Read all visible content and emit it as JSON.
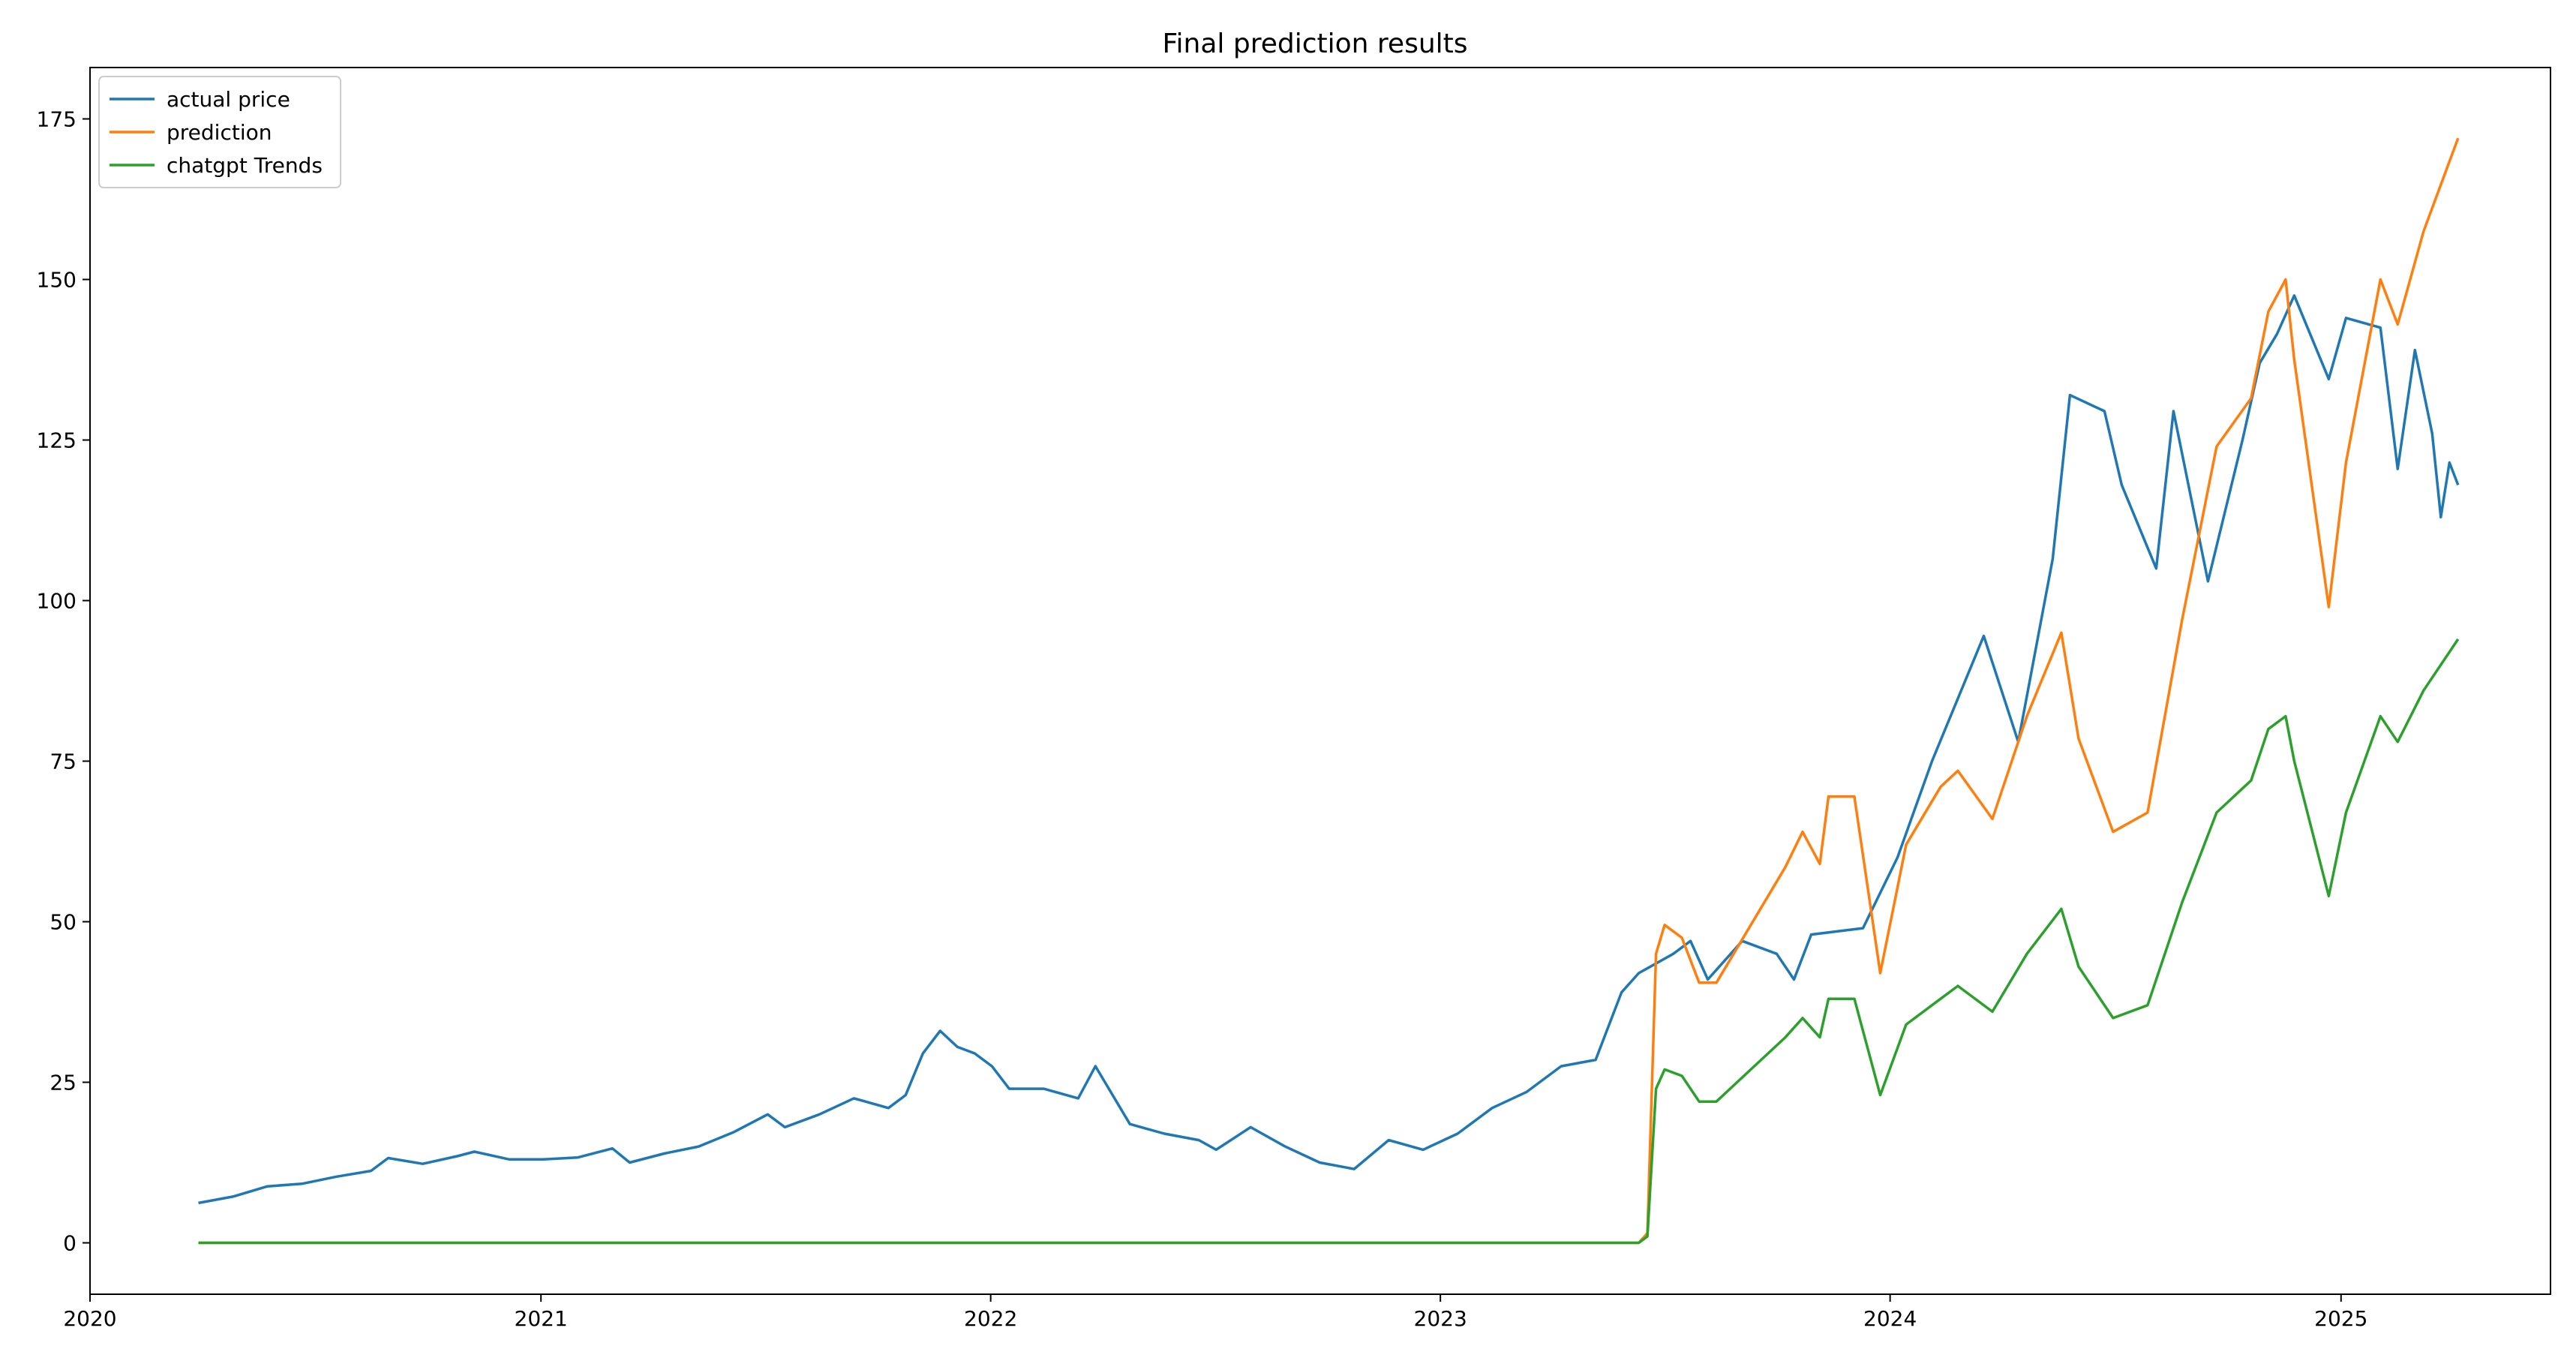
{
  "chart_data": {
    "type": "line",
    "title": "Final prediction results",
    "xlabel": "",
    "ylabel": "",
    "xlim": [
      "2020-01-01",
      "2025-06-20"
    ],
    "ylim": [
      -8,
      183
    ],
    "grid": false,
    "legend_position": "top-left",
    "x_tick_labels": [
      "2020",
      "2021",
      "2022",
      "2023",
      "2024",
      "2025"
    ],
    "y_tick_labels": [
      "0",
      "25",
      "50",
      "75",
      "100",
      "125",
      "150",
      "175"
    ],
    "series": [
      {
        "name": "actual price",
        "color": "#1f77b4",
        "points": [
          [
            "2020-03-29",
            6.2
          ],
          [
            "2020-04-26",
            7.2
          ],
          [
            "2020-05-24",
            8.8
          ],
          [
            "2020-06-21",
            9.2
          ],
          [
            "2020-07-19",
            10.3
          ],
          [
            "2020-08-16",
            11.2
          ],
          [
            "2020-08-30",
            13.2
          ],
          [
            "2020-09-27",
            12.3
          ],
          [
            "2020-10-25",
            13.5
          ],
          [
            "2020-11-08",
            14.2
          ],
          [
            "2020-12-06",
            13.0
          ],
          [
            "2021-01-03",
            13.0
          ],
          [
            "2021-01-31",
            13.3
          ],
          [
            "2021-02-28",
            14.7
          ],
          [
            "2021-03-14",
            12.5
          ],
          [
            "2021-04-11",
            13.9
          ],
          [
            "2021-05-09",
            15.0
          ],
          [
            "2021-06-06",
            17.2
          ],
          [
            "2021-07-04",
            20.0
          ],
          [
            "2021-07-18",
            18.0
          ],
          [
            "2021-08-15",
            20.0
          ],
          [
            "2021-09-12",
            22.5
          ],
          [
            "2021-10-10",
            21.0
          ],
          [
            "2021-10-24",
            23.0
          ],
          [
            "2021-11-07",
            29.5
          ],
          [
            "2021-11-21",
            33.0
          ],
          [
            "2021-12-05",
            30.5
          ],
          [
            "2021-12-19",
            29.5
          ],
          [
            "2022-01-02",
            27.5
          ],
          [
            "2022-01-16",
            24.0
          ],
          [
            "2022-02-13",
            24.0
          ],
          [
            "2022-03-13",
            22.5
          ],
          [
            "2022-03-27",
            27.5
          ],
          [
            "2022-04-24",
            18.5
          ],
          [
            "2022-05-22",
            17.0
          ],
          [
            "2022-06-19",
            16.0
          ],
          [
            "2022-07-03",
            14.5
          ],
          [
            "2022-07-31",
            18.0
          ],
          [
            "2022-08-28",
            15.0
          ],
          [
            "2022-09-25",
            12.5
          ],
          [
            "2022-10-23",
            11.5
          ],
          [
            "2022-11-20",
            16.0
          ],
          [
            "2022-12-18",
            14.5
          ],
          [
            "2023-01-15",
            17.0
          ],
          [
            "2023-02-12",
            21.0
          ],
          [
            "2023-03-12",
            23.5
          ],
          [
            "2023-04-09",
            27.5
          ],
          [
            "2023-05-07",
            28.5
          ],
          [
            "2023-05-28",
            39.0
          ],
          [
            "2023-06-11",
            42.0
          ],
          [
            "2023-07-09",
            45.0
          ],
          [
            "2023-07-23",
            47.0
          ],
          [
            "2023-08-06",
            41.0
          ],
          [
            "2023-09-03",
            47.0
          ],
          [
            "2023-10-01",
            45.0
          ],
          [
            "2023-10-15",
            41.0
          ],
          [
            "2023-10-29",
            48.0
          ],
          [
            "2023-12-10",
            49.0
          ],
          [
            "2024-01-07",
            60.0
          ],
          [
            "2024-02-04",
            75.0
          ],
          [
            "2024-03-03",
            88.0
          ],
          [
            "2024-03-17",
            94.5
          ],
          [
            "2024-04-14",
            78.0
          ],
          [
            "2024-05-12",
            106.5
          ],
          [
            "2024-05-26",
            132.0
          ],
          [
            "2024-06-23",
            129.5
          ],
          [
            "2024-07-07",
            118.0
          ],
          [
            "2024-08-04",
            105.0
          ],
          [
            "2024-08-18",
            129.5
          ],
          [
            "2024-09-15",
            103.0
          ],
          [
            "2024-10-13",
            125.0
          ],
          [
            "2024-10-27",
            137.0
          ],
          [
            "2024-11-10",
            141.5
          ],
          [
            "2024-11-24",
            147.5
          ],
          [
            "2024-12-22",
            134.5
          ],
          [
            "2025-01-05",
            144.0
          ],
          [
            "2025-02-02",
            142.5
          ],
          [
            "2025-02-16",
            120.5
          ],
          [
            "2025-03-02",
            139.0
          ],
          [
            "2025-03-16",
            126.0
          ],
          [
            "2025-03-23",
            113.0
          ],
          [
            "2025-03-30",
            121.5
          ],
          [
            "2025-04-06",
            118.0
          ]
        ]
      },
      {
        "name": "prediction",
        "color": "#ff7f0e",
        "points": [
          [
            "2020-03-29",
            0.0
          ],
          [
            "2023-06-11",
            0.0
          ],
          [
            "2023-06-18",
            1.5
          ],
          [
            "2023-06-25",
            45.0
          ],
          [
            "2023-07-02",
            49.5
          ],
          [
            "2023-07-16",
            47.5
          ],
          [
            "2023-07-30",
            40.5
          ],
          [
            "2023-08-13",
            40.5
          ],
          [
            "2023-09-10",
            49.5
          ],
          [
            "2023-10-08",
            58.5
          ],
          [
            "2023-10-22",
            64.0
          ],
          [
            "2023-11-05",
            59.0
          ],
          [
            "2023-11-12",
            69.5
          ],
          [
            "2023-12-03",
            69.5
          ],
          [
            "2023-12-24",
            42.0
          ],
          [
            "2024-01-14",
            62.0
          ],
          [
            "2024-02-11",
            71.0
          ],
          [
            "2024-02-25",
            73.5
          ],
          [
            "2024-03-24",
            66.0
          ],
          [
            "2024-04-21",
            82.0
          ],
          [
            "2024-05-19",
            95.0
          ],
          [
            "2024-06-02",
            78.5
          ],
          [
            "2024-06-30",
            64.0
          ],
          [
            "2024-07-28",
            67.0
          ],
          [
            "2024-08-25",
            97.0
          ],
          [
            "2024-09-22",
            124.0
          ],
          [
            "2024-10-20",
            131.5
          ],
          [
            "2024-11-03",
            145.0
          ],
          [
            "2024-11-17",
            150.0
          ],
          [
            "2024-11-24",
            137.5
          ],
          [
            "2024-12-22",
            99.0
          ],
          [
            "2025-01-05",
            121.5
          ],
          [
            "2025-02-02",
            150.0
          ],
          [
            "2025-02-16",
            143.0
          ],
          [
            "2025-03-09",
            157.5
          ],
          [
            "2025-04-06",
            172.0
          ]
        ]
      },
      {
        "name": "chatgpt Trends",
        "color": "#2ca02c",
        "points": [
          [
            "2020-03-29",
            0.0
          ],
          [
            "2023-06-11",
            0.0
          ],
          [
            "2023-06-18",
            1.0
          ],
          [
            "2023-06-25",
            24.0
          ],
          [
            "2023-07-02",
            27.0
          ],
          [
            "2023-07-16",
            26.0
          ],
          [
            "2023-07-30",
            22.0
          ],
          [
            "2023-08-13",
            22.0
          ],
          [
            "2023-09-10",
            27.0
          ],
          [
            "2023-10-08",
            32.0
          ],
          [
            "2023-10-22",
            35.0
          ],
          [
            "2023-11-05",
            32.0
          ],
          [
            "2023-11-12",
            38.0
          ],
          [
            "2023-12-03",
            38.0
          ],
          [
            "2023-12-24",
            23.0
          ],
          [
            "2024-01-14",
            34.0
          ],
          [
            "2024-02-11",
            38.0
          ],
          [
            "2024-02-25",
            40.0
          ],
          [
            "2024-03-24",
            36.0
          ],
          [
            "2024-04-21",
            45.0
          ],
          [
            "2024-05-19",
            52.0
          ],
          [
            "2024-06-02",
            43.0
          ],
          [
            "2024-06-30",
            35.0
          ],
          [
            "2024-07-28",
            37.0
          ],
          [
            "2024-08-25",
            53.0
          ],
          [
            "2024-09-22",
            67.0
          ],
          [
            "2024-10-20",
            72.0
          ],
          [
            "2024-11-03",
            80.0
          ],
          [
            "2024-11-17",
            82.0
          ],
          [
            "2024-11-24",
            75.0
          ],
          [
            "2024-12-22",
            54.0
          ],
          [
            "2025-01-05",
            67.0
          ],
          [
            "2025-02-02",
            82.0
          ],
          [
            "2025-02-16",
            78.0
          ],
          [
            "2025-03-09",
            86.0
          ],
          [
            "2025-04-06",
            94.0
          ]
        ]
      }
    ]
  }
}
